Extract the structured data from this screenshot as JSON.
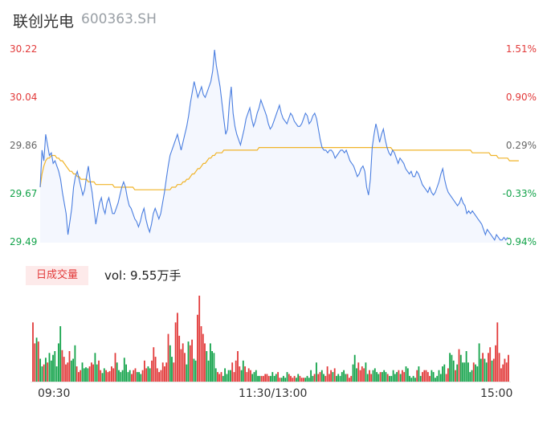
{
  "header": {
    "name": "联创光电",
    "code": "600363.SH"
  },
  "colors": {
    "up": "#e23a3a",
    "down": "#13a34a",
    "price_line": "#4a7ee0",
    "avg_line": "#f0b429",
    "flat": "#666666"
  },
  "left_axis_labels": [
    "30.22",
    "30.04",
    "29.86",
    "29.67",
    "29.49"
  ],
  "right_axis_labels": [
    "1.51%",
    "0.90%",
    "0.29%",
    "-0.33%",
    "-0.94%"
  ],
  "volume_panel": {
    "tab_label": "日成交量",
    "vol_label": "vol: 9.55万手"
  },
  "x_labels": [
    "09:30",
    "11:30/13:00",
    "15:00"
  ],
  "chart_data": [
    {
      "type": "line",
      "series": [],
      "x_labels": [
        "09:30",
        "11:30/13:00",
        "15:00"
      ],
      "ylim": [
        29.49,
        30.22
      ],
      "y_ticks": [
        30.22,
        30.04,
        29.86,
        29.67,
        29.49
      ],
      "y2_ticks": [
        "1.51%",
        "0.90%",
        "0.29%",
        "-0.33%",
        "-0.94%"
      ],
      "price": [
        29.7,
        29.84,
        29.8,
        29.9,
        29.86,
        29.82,
        29.83,
        29.79,
        29.8,
        29.78,
        29.76,
        29.73,
        29.68,
        29.64,
        29.6,
        29.52,
        29.57,
        29.62,
        29.7,
        29.74,
        29.76,
        29.73,
        29.7,
        29.67,
        29.69,
        29.74,
        29.78,
        29.72,
        29.68,
        29.62,
        29.56,
        29.6,
        29.64,
        29.66,
        29.62,
        29.6,
        29.64,
        29.66,
        29.63,
        29.6,
        29.6,
        29.62,
        29.64,
        29.67,
        29.7,
        29.72,
        29.7,
        29.66,
        29.63,
        29.62,
        29.6,
        29.58,
        29.57,
        29.55,
        29.57,
        29.6,
        29.62,
        29.58,
        29.55,
        29.53,
        29.56,
        29.6,
        29.62,
        29.6,
        29.58,
        29.6,
        29.64,
        29.68,
        29.73,
        29.78,
        29.82,
        29.84,
        29.86,
        29.88,
        29.9,
        29.87,
        29.84,
        29.87,
        29.9,
        29.93,
        29.97,
        30.02,
        30.06,
        30.1,
        30.07,
        30.04,
        30.06,
        30.08,
        30.05,
        30.04,
        30.06,
        30.08,
        30.1,
        30.14,
        30.22,
        30.16,
        30.12,
        30.08,
        30.02,
        29.96,
        29.9,
        29.92,
        30.02,
        30.08,
        29.98,
        29.93,
        29.9,
        29.88,
        29.86,
        29.89,
        29.92,
        29.96,
        29.98,
        30.0,
        29.96,
        29.93,
        29.95,
        29.98,
        30.0,
        30.03,
        30.01,
        29.99,
        29.97,
        29.94,
        29.92,
        29.93,
        29.95,
        29.97,
        29.99,
        30.01,
        29.98,
        29.96,
        29.95,
        29.94,
        29.96,
        29.98,
        29.97,
        29.95,
        29.94,
        29.93,
        29.93,
        29.94,
        29.96,
        29.98,
        29.97,
        29.94,
        29.95,
        29.97,
        29.98,
        29.96,
        29.92,
        29.88,
        29.85,
        29.84,
        29.84,
        29.83,
        29.84,
        29.84,
        29.83,
        29.81,
        29.82,
        29.83,
        29.84,
        29.84,
        29.83,
        29.84,
        29.82,
        29.8,
        29.79,
        29.78,
        29.76,
        29.74,
        29.75,
        29.77,
        29.78,
        29.76,
        29.7,
        29.67,
        29.73,
        29.85,
        29.9,
        29.94,
        29.91,
        29.87,
        29.9,
        29.92,
        29.88,
        29.85,
        29.83,
        29.82,
        29.84,
        29.83,
        29.81,
        29.79,
        29.81,
        29.8,
        29.79,
        29.77,
        29.76,
        29.75,
        29.76,
        29.74,
        29.74,
        29.76,
        29.75,
        29.73,
        29.71,
        29.7,
        29.69,
        29.68,
        29.7,
        29.68,
        29.67,
        29.68,
        29.7,
        29.72,
        29.75,
        29.77,
        29.73,
        29.7,
        29.68,
        29.67,
        29.66,
        29.65,
        29.64,
        29.63,
        29.64,
        29.66,
        29.64,
        29.63,
        29.6,
        29.61,
        29.6,
        29.61,
        29.6,
        29.59,
        29.58,
        29.57,
        29.56,
        29.54,
        29.52,
        29.54,
        29.53,
        29.52,
        29.51,
        29.5,
        29.52,
        29.51,
        29.5,
        29.5,
        29.51,
        29.5,
        29.51
      ],
      "avg_price": [
        29.7,
        29.75,
        29.78,
        29.8,
        29.81,
        29.81,
        29.82,
        29.82,
        29.82,
        29.81,
        29.81,
        29.8,
        29.8,
        29.79,
        29.78,
        29.77,
        29.76,
        29.76,
        29.75,
        29.75,
        29.74,
        29.74,
        29.73,
        29.73,
        29.73,
        29.73,
        29.72,
        29.72,
        29.72,
        29.72,
        29.71,
        29.71,
        29.71,
        29.71,
        29.71,
        29.71,
        29.71,
        29.71,
        29.71,
        29.71,
        29.7,
        29.7,
        29.7,
        29.7,
        29.7,
        29.7,
        29.7,
        29.7,
        29.7,
        29.7,
        29.7,
        29.69,
        29.69,
        29.69,
        29.69,
        29.69,
        29.69,
        29.69,
        29.69,
        29.69,
        29.69,
        29.69,
        29.69,
        29.69,
        29.69,
        29.69,
        29.69,
        29.69,
        29.69,
        29.69,
        29.69,
        29.7,
        29.7,
        29.7,
        29.71,
        29.71,
        29.71,
        29.72,
        29.72,
        29.73,
        29.73,
        29.74,
        29.75,
        29.75,
        29.76,
        29.77,
        29.77,
        29.78,
        29.79,
        29.79,
        29.8,
        29.81,
        29.81,
        29.82,
        29.82,
        29.83,
        29.83,
        29.83,
        29.83,
        29.84,
        29.84,
        29.84,
        29.84,
        29.84,
        29.84,
        29.84,
        29.84,
        29.84,
        29.84,
        29.84,
        29.84,
        29.84,
        29.84,
        29.84,
        29.84,
        29.84,
        29.84,
        29.84,
        29.85,
        29.85,
        29.85,
        29.85,
        29.85,
        29.85,
        29.85,
        29.85,
        29.85,
        29.85,
        29.85,
        29.85,
        29.85,
        29.85,
        29.85,
        29.85,
        29.85,
        29.85,
        29.85,
        29.85,
        29.85,
        29.85,
        29.85,
        29.85,
        29.85,
        29.85,
        29.85,
        29.85,
        29.85,
        29.85,
        29.85,
        29.85,
        29.85,
        29.85,
        29.85,
        29.85,
        29.85,
        29.85,
        29.85,
        29.85,
        29.85,
        29.85,
        29.85,
        29.85,
        29.85,
        29.85,
        29.85,
        29.85,
        29.85,
        29.85,
        29.85,
        29.85,
        29.85,
        29.85,
        29.85,
        29.85,
        29.85,
        29.85,
        29.85,
        29.85,
        29.85,
        29.85,
        29.85,
        29.85,
        29.85,
        29.85,
        29.85,
        29.85,
        29.85,
        29.85,
        29.85,
        29.85,
        29.84,
        29.84,
        29.84,
        29.84,
        29.84,
        29.84,
        29.84,
        29.84,
        29.84,
        29.84,
        29.84,
        29.84,
        29.84,
        29.84,
        29.84,
        29.84,
        29.84,
        29.84,
        29.84,
        29.84,
        29.84,
        29.84,
        29.84,
        29.84,
        29.84,
        29.84,
        29.84,
        29.84,
        29.84,
        29.84,
        29.84,
        29.84,
        29.84,
        29.84,
        29.84,
        29.84,
        29.84,
        29.84,
        29.84,
        29.84,
        29.84,
        29.84,
        29.84,
        29.83,
        29.83,
        29.83,
        29.83,
        29.83,
        29.83,
        29.83,
        29.83,
        29.83,
        29.83,
        29.82,
        29.82,
        29.82,
        29.82,
        29.81,
        29.81,
        29.81,
        29.81,
        29.81,
        29.81,
        29.8,
        29.8,
        29.8,
        29.8,
        29.8,
        29.8
      ]
    },
    {
      "type": "bar",
      "series": [],
      "volume": [
        62,
        40,
        46,
        42,
        24,
        16,
        18,
        25,
        20,
        30,
        22,
        28,
        32,
        16,
        40,
        58,
        33,
        26,
        18,
        20,
        32,
        22,
        24,
        38,
        16,
        10,
        12,
        20,
        14,
        15,
        14,
        16,
        20,
        18,
        30,
        18,
        22,
        12,
        9,
        14,
        12,
        10,
        11,
        16,
        14,
        30,
        20,
        12,
        10,
        12,
        25,
        18,
        10,
        12,
        8,
        12,
        14,
        10,
        10,
        8,
        12,
        22,
        14,
        16,
        14,
        22,
        36,
        26,
        14,
        10,
        12,
        20,
        16,
        20,
        50,
        38,
        26,
        20,
        62,
        72,
        48,
        34,
        40,
        30,
        18,
        42,
        38,
        44,
        24,
        22,
        70,
        90,
        58,
        50,
        40,
        32,
        22,
        40,
        32,
        30,
        14,
        10,
        8,
        10,
        6,
        14,
        8,
        12,
        12,
        20,
        10,
        22,
        32,
        16,
        12,
        22,
        16,
        10,
        14,
        12,
        8,
        10,
        12,
        6,
        6,
        6,
        6,
        8,
        8,
        6,
        6,
        10,
        6,
        8,
        10,
        4,
        4,
        6,
        4,
        10,
        8,
        6,
        4,
        6,
        4,
        8,
        6,
        4,
        4,
        4,
        6,
        4,
        12,
        6,
        8,
        20,
        8,
        10,
        12,
        8,
        6,
        16,
        8,
        12,
        10,
        14,
        6,
        8,
        6,
        10,
        12,
        8,
        8,
        4,
        6,
        18,
        28,
        14,
        20,
        12,
        16,
        14,
        20,
        8,
        12,
        8,
        12,
        14,
        10,
        8,
        10,
        10,
        12,
        10,
        8,
        6,
        6,
        12,
        8,
        10,
        12,
        8,
        12,
        10,
        16,
        14,
        6,
        4,
        6,
        4,
        12,
        16,
        6,
        10,
        12,
        12,
        10,
        6,
        12,
        10,
        4,
        6,
        12,
        8,
        16,
        18,
        8,
        14,
        30,
        28,
        22,
        12,
        18,
        34,
        28,
        20,
        20,
        32,
        20,
        10,
        12,
        20,
        18,
        16,
        40,
        24,
        30,
        24,
        20,
        30,
        36,
        22,
        24,
        38,
        62,
        30,
        14,
        18,
        24,
        20,
        28
      ],
      "ylim": [
        0,
        90
      ]
    }
  ]
}
